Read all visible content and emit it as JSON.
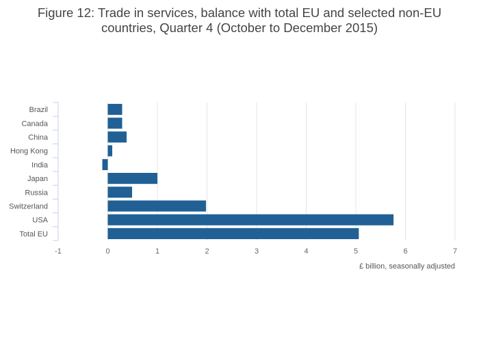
{
  "chart_data": {
    "type": "bar",
    "orientation": "horizontal",
    "title_line1": "Figure 12: Trade in services, balance with total EU and selected non-EU",
    "title_line2": "countries, Quarter 4 (October to December 2015)",
    "categories": [
      "Brazil",
      "Canada",
      "China",
      "Hong Kong",
      "India",
      "Japan",
      "Russia",
      "Switzerland",
      "USA",
      "Total EU"
    ],
    "values": [
      0.29,
      0.29,
      0.38,
      0.09,
      -0.11,
      1.0,
      0.49,
      1.98,
      5.76,
      5.06
    ],
    "xlabel": "£ billion, seasonally adjusted",
    "ylabel": "",
    "xlim": [
      -1,
      7
    ],
    "xticks": [
      "-1",
      "0",
      "1",
      "2",
      "3",
      "4",
      "5",
      "6",
      "7"
    ],
    "grid": true,
    "bar_color": "#206095"
  }
}
